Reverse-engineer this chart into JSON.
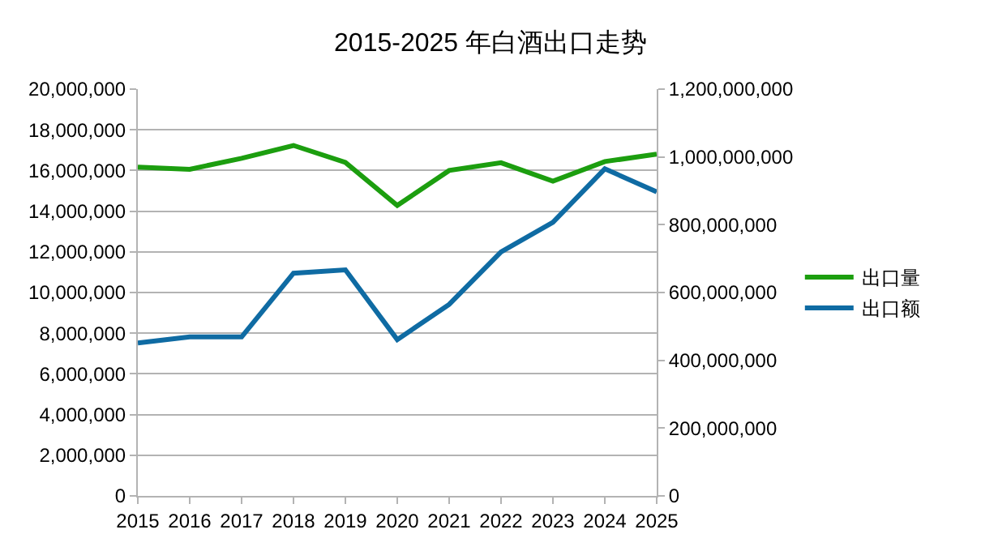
{
  "chart_data": {
    "type": "line",
    "title": "2015-2025 年白酒出口走势",
    "x": [
      2015,
      2016,
      2017,
      2018,
      2019,
      2020,
      2021,
      2022,
      2023,
      2024,
      2025
    ],
    "series": [
      {
        "name": "出口量",
        "color": "#1c9e0f",
        "values": [
          16170000,
          16060000,
          16600000,
          17230000,
          16400000,
          14280000,
          16000000,
          16380000,
          15480000,
          16440000,
          16800000
        ]
      },
      {
        "name": "出口额",
        "color": "#0f6ba3",
        "axis": "y2",
        "values": [
          451000000,
          469000000,
          469000000,
          657000000,
          667000000,
          461000000,
          565000000,
          720000000,
          807000000,
          965000000,
          897000000
        ]
      }
    ],
    "xlim": [
      2015,
      2025
    ],
    "xticks": [
      2015,
      2016,
      2017,
      2018,
      2019,
      2020,
      2021,
      2022,
      2023,
      2024,
      2025
    ],
    "ylim": [
      0,
      20000000
    ],
    "yticks": [
      {
        "value": 0,
        "label": "0"
      },
      {
        "value": 2000000,
        "label": "2,000,000"
      },
      {
        "value": 4000000,
        "label": "4,000,000"
      },
      {
        "value": 6000000,
        "label": "6,000,000"
      },
      {
        "value": 8000000,
        "label": "8,000,000"
      },
      {
        "value": 10000000,
        "label": "10,000,000"
      },
      {
        "value": 12000000,
        "label": "12,000,000"
      },
      {
        "value": 14000000,
        "label": "14,000,000"
      },
      {
        "value": 16000000,
        "label": "16,000,000"
      },
      {
        "value": 18000000,
        "label": "18,000,000"
      },
      {
        "value": 20000000,
        "label": "20,000,000"
      }
    ],
    "y2lim": [
      0,
      1200000000
    ],
    "y2ticks": [
      {
        "value": 0,
        "label": "0"
      },
      {
        "value": 200000000,
        "label": "200,000,000"
      },
      {
        "value": 400000000,
        "label": "400,000,000"
      },
      {
        "value": 600000000,
        "label": "600,000,000"
      },
      {
        "value": 800000000,
        "label": "800,000,000"
      },
      {
        "value": 1000000000,
        "label": "1,000,000,000"
      },
      {
        "value": 1200000000,
        "label": "1,200,000,000"
      }
    ],
    "grid": "y",
    "legend": "right",
    "marker": "none",
    "line_style": "solid"
  }
}
